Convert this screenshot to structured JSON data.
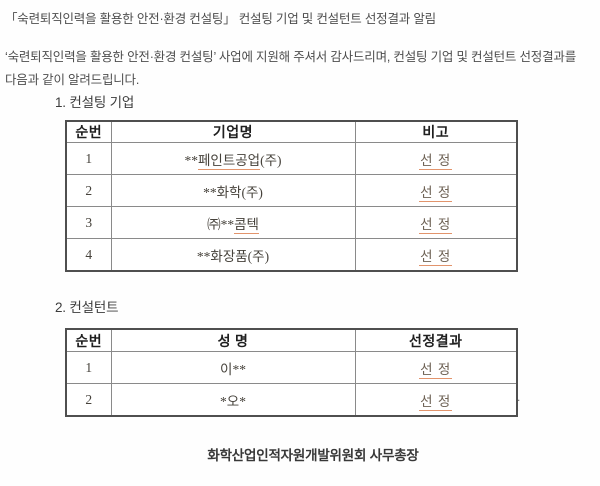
{
  "title": "「숙련퇴직인력을 활용한 안전·환경 컨설팅」 컨설팅 기업 및 컨설턴트 선정결과 알림",
  "intro": {
    "line1": "‘숙련퇴직인력을 활용한 안전·환경 컨설팅’ 사업에 지원해 주셔서 감사드리며, 컨설팅 기업 및 컨설턴트 선정결과를",
    "line2": "다음과 같이 알려드립니다."
  },
  "sections": {
    "companies": {
      "heading": "1. 컨설팅 기업",
      "headers": [
        "순번",
        "기업명",
        "비고"
      ],
      "rows": [
        {
          "no": "1",
          "name": [
            {
              "t": "**"
            },
            {
              "t": "페인트공업",
              "u": true
            },
            {
              "t": "(주)"
            }
          ],
          "result": "선  정"
        },
        {
          "no": "2",
          "name": [
            {
              "t": "**화학(주)"
            }
          ],
          "result": "선  정"
        },
        {
          "no": "3",
          "name": [
            {
              "t": "㈜**"
            },
            {
              "t": "콤텍",
              "u": true
            }
          ],
          "result": "선  정"
        },
        {
          "no": "4",
          "name": [
            {
              "t": "**화장품(주)"
            }
          ],
          "result": "선  정"
        }
      ]
    },
    "consultants": {
      "heading": "2. 컨설턴트",
      "headers": [
        "순번",
        "성  명",
        "선정결과"
      ],
      "rows": [
        {
          "no": "1",
          "name": [
            {
              "t": "이**"
            }
          ],
          "result": "선  정"
        },
        {
          "no": "2",
          "name": [
            {
              "t": "*오*"
            }
          ],
          "result": "선  정"
        }
      ]
    }
  },
  "stray_mark": ".",
  "footer": "화학산업인적자원개발위원회 사무총장",
  "colors": {
    "body_text": "#4e4e4e",
    "table_header_text": "#1f1f1f",
    "table_text": "#46423b",
    "result_text": "#6e6255",
    "spellcheck_underline": "#e2946c",
    "table_border_outer": "#4f4f4f",
    "table_border_inner": "#8a8a8a",
    "background": "#fefefe"
  }
}
